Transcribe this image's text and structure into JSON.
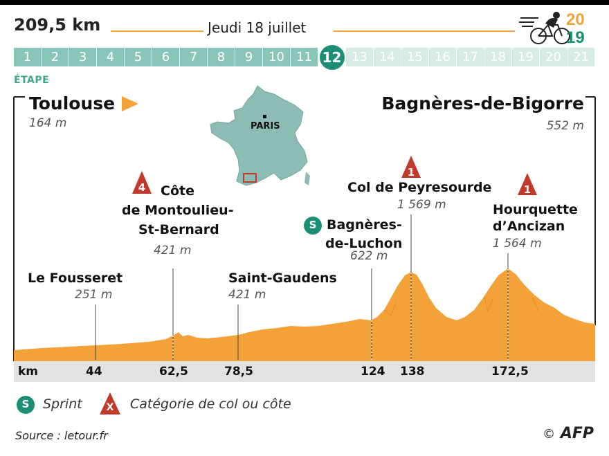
{
  "header": {
    "distance": "209,5 km",
    "date": "Jeudi 18 juillet",
    "year_top": "20",
    "year_bottom": "19",
    "accent_color": "#f3a23a",
    "brand_color": "#1a8f74"
  },
  "stages": {
    "items": [
      "1",
      "2",
      "3",
      "4",
      "5",
      "6",
      "7",
      "8",
      "9",
      "10",
      "11",
      "12",
      "13",
      "14",
      "15",
      "16",
      "17",
      "18",
      "19",
      "20",
      "21"
    ],
    "current": 12,
    "label": "ÉTAPE"
  },
  "start": {
    "name": "Toulouse",
    "altitude": "164 m"
  },
  "finish": {
    "name": "Bagnères-de-Bigorre",
    "altitude": "552 m"
  },
  "map": {
    "city_label": "PARIS"
  },
  "points": [
    {
      "name": "Le Fousseret",
      "altitude": "251 m",
      "km": "44"
    },
    {
      "name_line1": "Côte",
      "name_line2": "de Montoulieu-",
      "name_line3": "St-Bernard",
      "altitude": "421 m",
      "km": "62,5",
      "category": "4"
    },
    {
      "name": "Saint-Gaudens",
      "altitude": "421 m",
      "km": "78,5"
    },
    {
      "name_line1": "Bagnères-",
      "name_line2": "de-Luchon",
      "altitude": "622 m",
      "km": "124",
      "sprint": "S"
    },
    {
      "name": "Col de Peyresourde",
      "altitude": "1 569 m",
      "km": "138",
      "category": "1"
    },
    {
      "name_line1": "Hourquette",
      "name_line2": "d’Ancizan",
      "altitude": "1 564 m",
      "km": "172,5",
      "category": "1"
    }
  ],
  "km_axis_label": "km",
  "legend": {
    "sprint_icon": "S",
    "sprint_label": "Sprint",
    "climb_icon": "X",
    "climb_label": "Catégorie de col ou côte"
  },
  "footer": {
    "source": "Source : letour.fr",
    "copyright": "©",
    "agency": "AFP"
  }
}
